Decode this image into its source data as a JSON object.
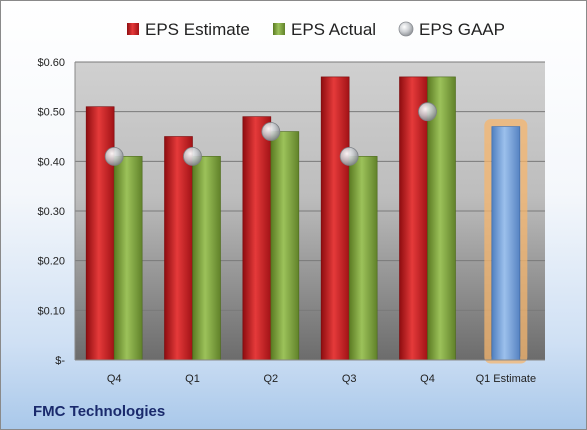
{
  "company": "FMC Technologies",
  "colors": {
    "estimate": "#c8161d",
    "actual": "#7d9e3a",
    "gaap": "#b9bcc0",
    "forecast": "#6e9ad3",
    "forecast_glow": "#f5b66e"
  },
  "chart_data": {
    "type": "bar",
    "categories": [
      "Q4",
      "Q1",
      "Q2",
      "Q3",
      "Q4",
      "Q1 Estimate"
    ],
    "series": [
      {
        "name": "EPS Estimate",
        "values": [
          0.51,
          0.45,
          0.49,
          0.57,
          0.57,
          null
        ]
      },
      {
        "name": "EPS Actual",
        "values": [
          0.41,
          0.41,
          0.46,
          0.41,
          0.57,
          null
        ]
      },
      {
        "name": "EPS GAAP",
        "values": [
          0.41,
          0.41,
          0.46,
          0.41,
          0.5,
          null
        ]
      }
    ],
    "forecast": {
      "category": "Q1 Estimate",
      "value": 0.47
    },
    "yticks": [
      "$-",
      "$0.10",
      "$0.20",
      "$0.30",
      "$0.40",
      "$0.50",
      "$0.60"
    ],
    "ylim": [
      0,
      0.6
    ],
    "legend_position": "top",
    "grid": true
  }
}
